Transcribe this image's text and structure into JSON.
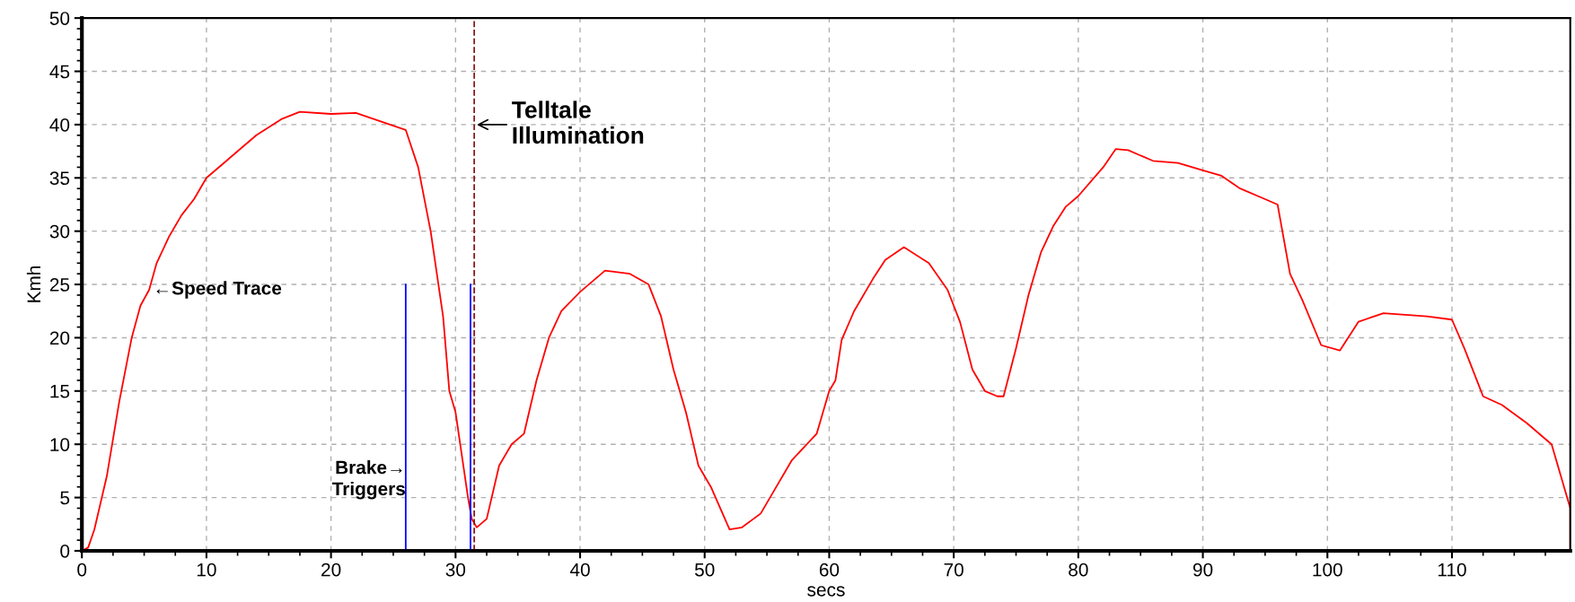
{
  "chart_data": {
    "type": "line",
    "xlabel": "secs",
    "ylabel": "Kmh",
    "xlim": [
      0,
      119.5
    ],
    "ylim": [
      0,
      50
    ],
    "xticks": [
      0,
      10,
      20,
      30,
      40,
      50,
      60,
      70,
      80,
      90,
      100,
      110
    ],
    "yticks": [
      0,
      5,
      10,
      15,
      20,
      25,
      30,
      35,
      40,
      45,
      50
    ],
    "grid": true,
    "legend": false,
    "marker": "none",
    "line_style": "solid",
    "series": [
      {
        "color": "#ff0000",
        "x": [
          0,
          0.5,
          1,
          2,
          3,
          4,
          4.7,
          5.4,
          6,
          7,
          8,
          9,
          10,
          12,
          14,
          16,
          17.5,
          20,
          22,
          24,
          26,
          27,
          28,
          29,
          29.5,
          30,
          31,
          31.3,
          31.7,
          32.5,
          33.5,
          34.5,
          35.5,
          36.5,
          37.5,
          38.5,
          40,
          42,
          44,
          45.5,
          46.5,
          47.5,
          48.5,
          49.5,
          50.5,
          52,
          53,
          54.5,
          55.5,
          57,
          59,
          60,
          60.5,
          61,
          62,
          63.5,
          64.5,
          66,
          68,
          69.5,
          70.5,
          71.5,
          72.5,
          73.5,
          74,
          75,
          76,
          77,
          78,
          79,
          80,
          82,
          83,
          84,
          86,
          88,
          90,
          91.5,
          93,
          95,
          96,
          97,
          98,
          99.5,
          101,
          102.5,
          104.5,
          108,
          110,
          111,
          112,
          112.5,
          114,
          116,
          118,
          119,
          119.5,
          119.5
        ],
        "values": [
          0,
          0.3,
          2,
          7,
          14,
          20,
          23,
          24.5,
          27,
          29.5,
          31.5,
          33,
          35,
          37,
          39,
          40.5,
          41.2,
          41,
          41.1,
          40.3,
          39.5,
          36,
          30,
          22,
          15,
          13,
          5,
          3,
          2.2,
          3,
          8,
          10,
          11,
          16,
          20,
          22.5,
          24.3,
          26.3,
          26,
          25,
          22,
          17,
          13,
          8,
          6,
          2,
          2.2,
          3.5,
          5.5,
          8.5,
          11,
          15,
          16,
          19.8,
          22.5,
          25.5,
          27.3,
          28.5,
          27,
          24.5,
          21.5,
          17,
          15,
          14.5,
          14.5,
          19,
          24,
          28,
          30.5,
          32.3,
          33.3,
          36,
          37.7,
          37.6,
          36.6,
          36.4,
          35.7,
          35.2,
          34,
          33,
          32.5,
          26,
          23.5,
          19.3,
          18.8,
          21.5,
          22.3,
          22,
          21.7,
          19,
          16,
          14.5,
          13.7,
          12,
          10,
          6,
          4,
          0
        ]
      },
      {
        "color": "#0000ff",
        "x": [
          26,
          26
        ],
        "values": [
          0,
          25
        ]
      },
      {
        "color": "#0000ff",
        "x": [
          31.2,
          31.2
        ],
        "values": [
          0,
          25
        ]
      }
    ],
    "ref_lines": [
      {
        "axis": "x",
        "value": 31.5,
        "color": "#8b1a1a",
        "line_style": "dashed"
      }
    ],
    "annotations": [
      {
        "text": "Telltale\nIllumination",
        "x": 31.5,
        "y": 40
      },
      {
        "text": "←Speed Trace",
        "x": 5.4,
        "y": 24.5
      },
      {
        "text": "Brake→\nTriggers",
        "x": 26,
        "y": 8.5
      }
    ]
  }
}
